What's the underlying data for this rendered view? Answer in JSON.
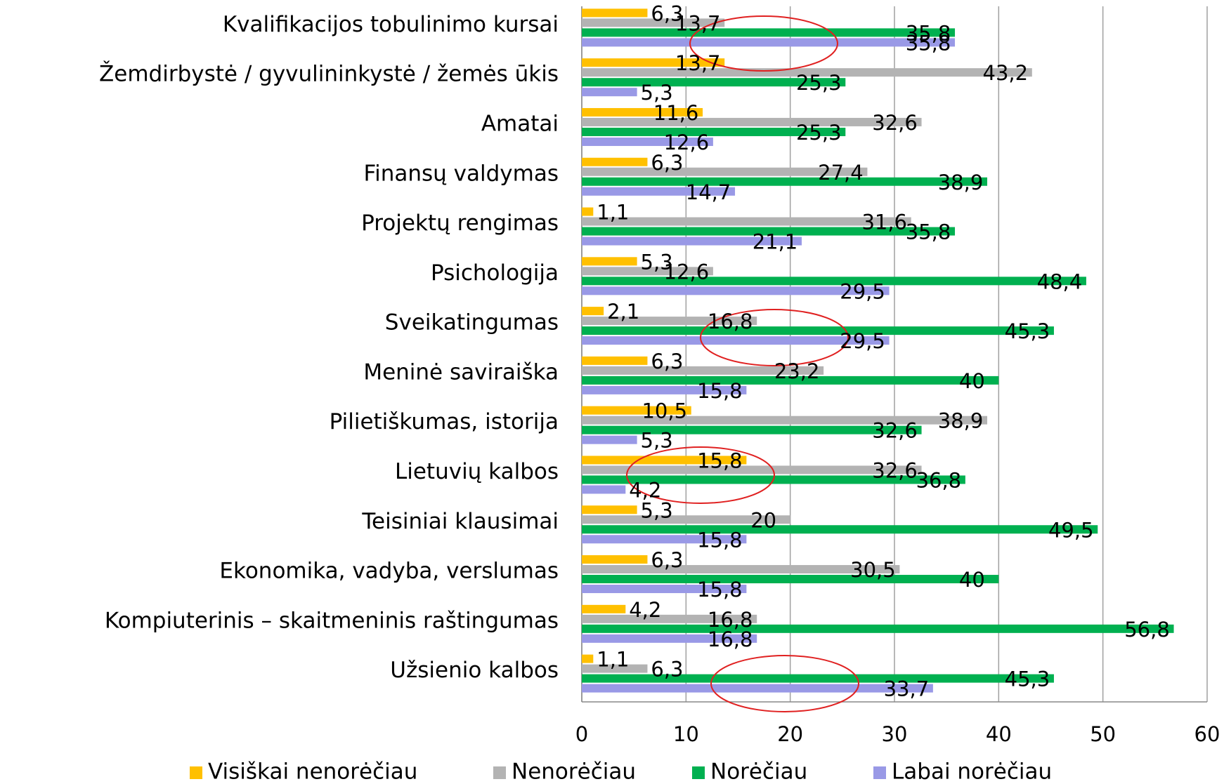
{
  "chart_data": {
    "type": "hbar",
    "categories": [
      "Kvalifikacijos tobulinimo kursai",
      "Žemdirbystė / gyvulininkystė /  žemės ūkis",
      "Amatai",
      "Finansų valdymas",
      "Projektų rengimas",
      "Psichologija",
      "Sveikatingumas",
      "Meninė saviraiška",
      "Pilietiškumas, istorija",
      "Lietuvių kalbos",
      "Teisiniai klausimai",
      "Ekonomika, vadyba, verslumas",
      "Kompiuterinis – skaitmeninis raštingumas",
      "Užsienio kalbos"
    ],
    "series": [
      {
        "name": "Visiškai nenorėčiau",
        "color": "#ffc000",
        "values": [
          6.3,
          13.7,
          11.6,
          6.3,
          1.1,
          5.3,
          2.1,
          6.3,
          10.5,
          15.8,
          5.3,
          6.3,
          4.2,
          1.1
        ],
        "value_labels": [
          "6,3",
          "13,7",
          "11,6",
          "6,3",
          "1,1",
          "5,3",
          "2,1",
          "6,3",
          "10,5",
          "15,8",
          "5,3",
          "6,3",
          "4,2",
          "1,1"
        ]
      },
      {
        "name": "Nenorėčiau",
        "color": "#b3b3b3",
        "values": [
          13.7,
          43.2,
          32.6,
          27.4,
          31.6,
          12.6,
          16.8,
          23.2,
          38.9,
          32.6,
          20,
          30.5,
          16.8,
          6.3
        ],
        "value_labels": [
          "13,7",
          "43,2",
          "32,6",
          "27,4",
          "31,6",
          "12,6",
          "16,8",
          "23,2",
          "38,9",
          "32,6",
          "20",
          "30,5",
          "16,8",
          "6,3"
        ]
      },
      {
        "name": "Norėčiau",
        "color": "#00b050",
        "values": [
          35.8,
          25.3,
          25.3,
          38.9,
          35.8,
          48.4,
          45.3,
          40,
          32.6,
          36.8,
          49.5,
          40,
          56.8,
          45.3
        ],
        "value_labels": [
          "35,8",
          "25,3",
          "25,3",
          "38,9",
          "35,8",
          "48,4",
          "45,3",
          "40",
          "32,6",
          "36,8",
          "49,5",
          "40",
          "56,8",
          "45,3"
        ]
      },
      {
        "name": "Labai norėčiau",
        "color": "#9999e6",
        "values": [
          35.8,
          5.3,
          12.6,
          14.7,
          21.1,
          29.5,
          29.5,
          15.8,
          5.3,
          4.2,
          15.8,
          15.8,
          16.8,
          33.7
        ],
        "value_labels": [
          "35,8",
          "5,3",
          "12,6",
          "14,7",
          "21,1",
          "29,5",
          "29,5",
          "15,8",
          "5,3",
          "4,2",
          "15,8",
          "15,8",
          "16,8",
          "33,7"
        ]
      }
    ],
    "xlim": [
      0,
      60
    ],
    "xticks": [
      0,
      10,
      20,
      30,
      40,
      50,
      60
    ],
    "grid": true,
    "legend": "bottom"
  }
}
